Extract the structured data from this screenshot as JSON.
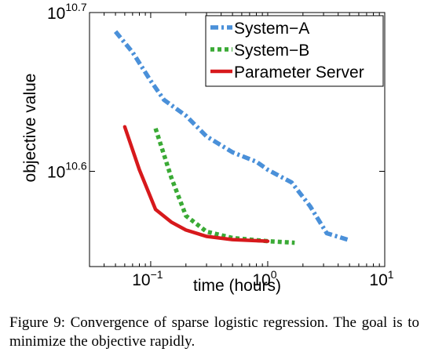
{
  "chart_data": {
    "type": "line",
    "xlabel": "time (hours)",
    "ylabel": "objective value",
    "x_scale": "log",
    "y_scale": "log",
    "xlim": [
      0.03,
      10
    ],
    "ylim_exponent": [
      10.54,
      10.7
    ],
    "x_ticks": [
      {
        "value": 0.1,
        "base": "10",
        "exp": "−1"
      },
      {
        "value": 1,
        "base": "10",
        "exp": "0"
      },
      {
        "value": 10,
        "base": "10",
        "exp": "1"
      }
    ],
    "y_ticks": [
      {
        "value": 10.6,
        "base": "10",
        "exp": "10.6"
      },
      {
        "value": 10.7,
        "base": "10",
        "exp": "10.7"
      }
    ],
    "legend_position": "top-right",
    "series": [
      {
        "name": "System−A",
        "color": "#4a90d9",
        "style": "dash-dot",
        "x": [
          0.05,
          0.07,
          0.1,
          0.13,
          0.2,
          0.3,
          0.5,
          0.8,
          1.0,
          1.6,
          2.3,
          3.2,
          4.8
        ],
        "y": [
          10.688,
          10.675,
          10.657,
          10.645,
          10.635,
          10.622,
          10.612,
          10.606,
          10.601,
          10.593,
          10.578,
          10.561,
          10.557
        ]
      },
      {
        "name": "System−B",
        "color": "#3aaa35",
        "style": "dotted",
        "x": [
          0.11,
          0.15,
          0.2,
          0.3,
          0.5,
          1.0,
          1.7
        ],
        "y": [
          10.627,
          10.596,
          10.572,
          10.562,
          10.558,
          10.556,
          10.555
        ]
      },
      {
        "name": "Parameter Server",
        "color": "#d7191c",
        "style": "solid",
        "x": [
          0.06,
          0.08,
          0.11,
          0.15,
          0.2,
          0.3,
          0.5,
          1.0
        ],
        "y": [
          10.628,
          10.601,
          10.576,
          10.568,
          10.563,
          10.559,
          10.557,
          10.556
        ]
      }
    ]
  },
  "caption": "Figure 9: Convergence of sparse logistic regression. The goal is to minimize the objective rapidly."
}
